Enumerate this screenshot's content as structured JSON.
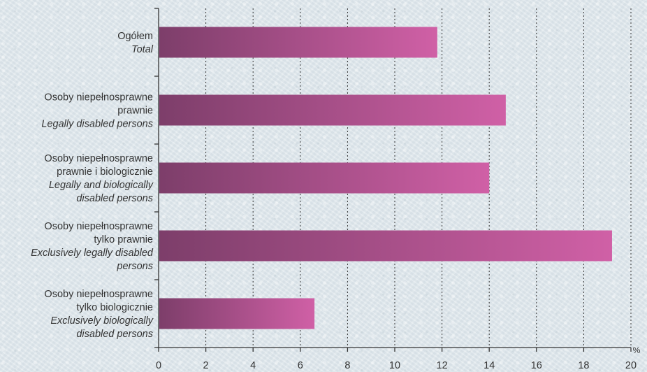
{
  "chart_data": {
    "type": "bar",
    "orientation": "horizontal",
    "categories": [
      {
        "pl": [
          "Ogółem"
        ],
        "en": [
          "Total"
        ]
      },
      {
        "pl": [
          "Osoby niepełnosprawne",
          "prawnie"
        ],
        "en": [
          "Legally disabled persons"
        ]
      },
      {
        "pl": [
          "Osoby niepełnosprawne",
          "prawnie i biologicznie"
        ],
        "en": [
          "Legally and biologically",
          "disabled persons"
        ]
      },
      {
        "pl": [
          "Osoby niepełnosprawne",
          "tylko prawnie"
        ],
        "en": [
          "Exclusively legally disabled",
          "persons"
        ]
      },
      {
        "pl": [
          "Osoby niepełnosprawne",
          "tylko biologicznie"
        ],
        "en": [
          "Exclusively biologically",
          "disabled persons"
        ]
      }
    ],
    "values": [
      11.8,
      14.7,
      14.0,
      19.2,
      6.6
    ],
    "x_unit": "%",
    "xlim": [
      0,
      20
    ],
    "xticks": [
      0,
      2,
      4,
      6,
      8,
      10,
      12,
      14,
      16,
      18,
      20
    ],
    "grid": "vertical dotted",
    "colors": {
      "bar_start": "#7d3e6a",
      "bar_end": "#d060a6",
      "axis": "#333333",
      "grid": "#333333"
    }
  }
}
